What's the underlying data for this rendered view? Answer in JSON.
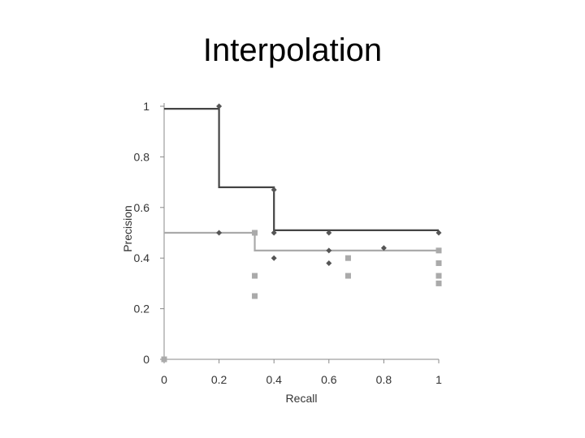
{
  "slide": {
    "title": "Interpolation"
  },
  "chart_data": {
    "type": "scatter",
    "title": "",
    "xlabel": "Recall",
    "ylabel": "Precision",
    "xlim": [
      0,
      1
    ],
    "ylim": [
      0,
      1
    ],
    "x_ticks": [
      0,
      0.2,
      0.4,
      0.6,
      0.8,
      1
    ],
    "x_tick_labels": [
      "0",
      "0.2",
      "0.4",
      "0.6",
      "0.8",
      "1"
    ],
    "y_ticks": [
      0,
      0.2,
      0.4,
      0.6,
      0.8,
      1
    ],
    "y_tick_labels": [
      "0",
      "0.2",
      "0.4",
      "0.6",
      "0.8",
      "1"
    ],
    "grid": false,
    "legend": "none",
    "series": [
      {
        "marker": "diamond",
        "color": "#555555",
        "points": [
          [
            0.2,
            1.0
          ],
          [
            0.2,
            0.5
          ],
          [
            0.4,
            0.67
          ],
          [
            0.4,
            0.5
          ],
          [
            0.4,
            0.4
          ],
          [
            0.6,
            0.5
          ],
          [
            0.6,
            0.43
          ],
          [
            0.6,
            0.38
          ],
          [
            0.8,
            0.44
          ],
          [
            1.0,
            0.5
          ],
          [
            0.0,
            0.0
          ]
        ]
      },
      {
        "marker": "square",
        "color": "#aaaaaa",
        "points": [
          [
            0.33,
            0.5
          ],
          [
            0.33,
            0.33
          ],
          [
            0.33,
            0.25
          ],
          [
            0.67,
            0.4
          ],
          [
            0.67,
            0.33
          ],
          [
            1.0,
            0.43
          ],
          [
            1.0,
            0.38
          ],
          [
            1.0,
            0.33
          ],
          [
            1.0,
            0.3
          ],
          [
            0.0,
            0.0
          ]
        ]
      }
    ],
    "interpolated_lines": [
      {
        "color": "#444444",
        "points": [
          [
            0,
            0.99
          ],
          [
            0.2,
            0.99
          ],
          [
            0.2,
            0.68
          ],
          [
            0.4,
            0.68
          ],
          [
            0.4,
            0.51
          ],
          [
            1.0,
            0.51
          ]
        ]
      },
      {
        "color": "#aaaaaa",
        "points": [
          [
            0,
            0.5
          ],
          [
            0.33,
            0.5
          ],
          [
            0.33,
            0.43
          ],
          [
            1.0,
            0.43
          ]
        ]
      }
    ]
  }
}
